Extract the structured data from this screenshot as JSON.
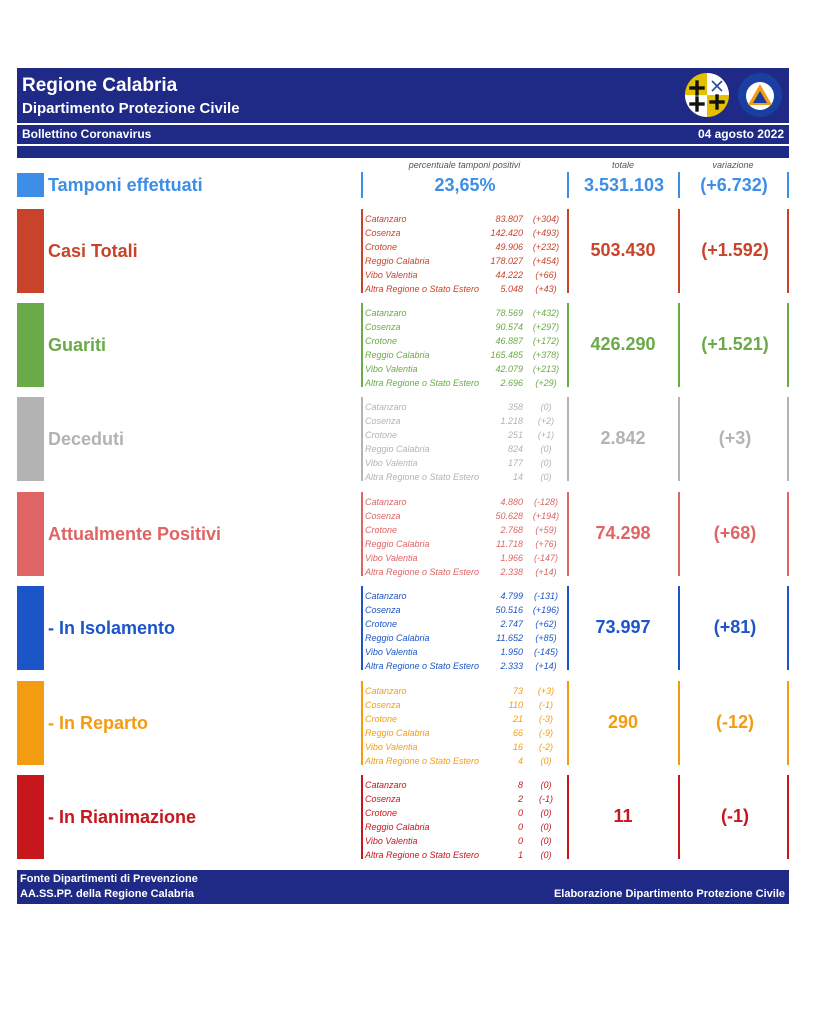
{
  "header": {
    "title": "Regione Calabria",
    "subtitle": "Dipartimento Protezione Civile",
    "bulletin": "Bollettino Coronavirus",
    "date": "04 agosto 2022",
    "logos": [
      "regione-calabria-emblem",
      "protezione-civile-logo"
    ]
  },
  "columns": {
    "pct_label": "percentuale tamponi positivi",
    "total_label": "totale",
    "var_label": "variazione"
  },
  "tamponi": {
    "label": "Tamponi effettuati",
    "pct": "23,65%",
    "total": "3.531.103",
    "variation": "(+6.732)",
    "color": "#3c8ee8"
  },
  "sections": [
    {
      "label": "Casi Totali",
      "color": "#c9432b",
      "total": "503.430",
      "variation": "(+1.592)",
      "rows": [
        {
          "name": "Catanzaro",
          "value": "83.807",
          "delta": "(+304)"
        },
        {
          "name": "Cosenza",
          "value": "142.420",
          "delta": "(+493)"
        },
        {
          "name": "Crotone",
          "value": "49.906",
          "delta": "(+232)"
        },
        {
          "name": "Reggio Calabria",
          "value": "178.027",
          "delta": "(+454)"
        },
        {
          "name": "Vibo Valentia",
          "value": "44.222",
          "delta": "(+66)"
        },
        {
          "name": "Altra Regione o Stato Estero",
          "value": "5.048",
          "delta": "(+43)"
        }
      ]
    },
    {
      "label": "Guariti",
      "color": "#6aaa48",
      "total": "426.290",
      "variation": "(+1.521)",
      "rows": [
        {
          "name": "Catanzaro",
          "value": "78.569",
          "delta": "(+432)"
        },
        {
          "name": "Cosenza",
          "value": "90.574",
          "delta": "(+297)"
        },
        {
          "name": "Crotone",
          "value": "46.887",
          "delta": "(+172)"
        },
        {
          "name": "Reggio Calabria",
          "value": "165.485",
          "delta": "(+378)"
        },
        {
          "name": "Vibo Valentia",
          "value": "42.079",
          "delta": "(+213)"
        },
        {
          "name": "Altra Regione o Stato Estero",
          "value": "2.696",
          "delta": "(+29)"
        }
      ]
    },
    {
      "label": "Deceduti",
      "color": "#b3b3b3",
      "total": "2.842",
      "variation": "(+3)",
      "rows": [
        {
          "name": "Catanzaro",
          "value": "358",
          "delta": "(0)"
        },
        {
          "name": "Cosenza",
          "value": "1.218",
          "delta": "(+2)"
        },
        {
          "name": "Crotone",
          "value": "251",
          "delta": "(+1)"
        },
        {
          "name": "Reggio Calabria",
          "value": "824",
          "delta": "(0)"
        },
        {
          "name": "Vibo Valentia",
          "value": "177",
          "delta": "(0)"
        },
        {
          "name": "Altra Regione o Stato Estero",
          "value": "14",
          "delta": "(0)"
        }
      ]
    },
    {
      "label": "Attualmente Positivi",
      "color": "#df6464",
      "total": "74.298",
      "variation": "(+68)",
      "rows": [
        {
          "name": "Catanzaro",
          "value": "4.880",
          "delta": "(-128)"
        },
        {
          "name": "Cosenza",
          "value": "50.628",
          "delta": "(+194)"
        },
        {
          "name": "Crotone",
          "value": "2.768",
          "delta": "(+59)"
        },
        {
          "name": "Reggio Calabria",
          "value": "11.718",
          "delta": "(+76)"
        },
        {
          "name": "Vibo Valentia",
          "value": "1.966",
          "delta": "(-147)"
        },
        {
          "name": "Altra Regione o Stato Estero",
          "value": "2.338",
          "delta": "(+14)"
        }
      ]
    },
    {
      "label": "- In Isolamento",
      "color": "#1c55c8",
      "total": "73.997",
      "variation": "(+81)",
      "rows": [
        {
          "name": "Catanzaro",
          "value": "4.799",
          "delta": "(-131)"
        },
        {
          "name": "Cosenza",
          "value": "50.516",
          "delta": "(+196)"
        },
        {
          "name": "Crotone",
          "value": "2.747",
          "delta": "(+62)"
        },
        {
          "name": "Reggio Calabria",
          "value": "11.652",
          "delta": "(+85)"
        },
        {
          "name": "Vibo Valentia",
          "value": "1.950",
          "delta": "(-145)"
        },
        {
          "name": "Altra Regione o Stato Estero",
          "value": "2.333",
          "delta": "(+14)"
        }
      ]
    },
    {
      "label": "- In Reparto",
      "color": "#f39c12",
      "total": "290",
      "variation": "(-12)",
      "rows": [
        {
          "name": "Catanzaro",
          "value": "73",
          "delta": "(+3)"
        },
        {
          "name": "Cosenza",
          "value": "110",
          "delta": "(-1)"
        },
        {
          "name": "Crotone",
          "value": "21",
          "delta": "(-3)"
        },
        {
          "name": "Reggio Calabria",
          "value": "66",
          "delta": "(-9)"
        },
        {
          "name": "Vibo Valentia",
          "value": "16",
          "delta": "(-2)"
        },
        {
          "name": "Altra Regione o Stato Estero",
          "value": "4",
          "delta": "(0)"
        }
      ]
    },
    {
      "label": "- In Rianimazione",
      "color": "#c8161d",
      "total": "11",
      "variation": "(-1)",
      "rows": [
        {
          "name": "Catanzaro",
          "value": "8",
          "delta": "(0)"
        },
        {
          "name": "Cosenza",
          "value": "2",
          "delta": "(-1)"
        },
        {
          "name": "Crotone",
          "value": "0",
          "delta": "(0)"
        },
        {
          "name": "Reggio Calabria",
          "value": "0",
          "delta": "(0)"
        },
        {
          "name": "Vibo Valentia",
          "value": "0",
          "delta": "(0)"
        },
        {
          "name": "Altra Regione o Stato Estero",
          "value": "1",
          "delta": "(0)"
        }
      ]
    }
  ],
  "footer": {
    "source_line1": "Fonte Dipartimenti di Prevenzione",
    "source_line2": "AA.SS.PP.  della Regione Calabria",
    "credit": "Elaborazione Dipartimento Protezione Civile"
  }
}
